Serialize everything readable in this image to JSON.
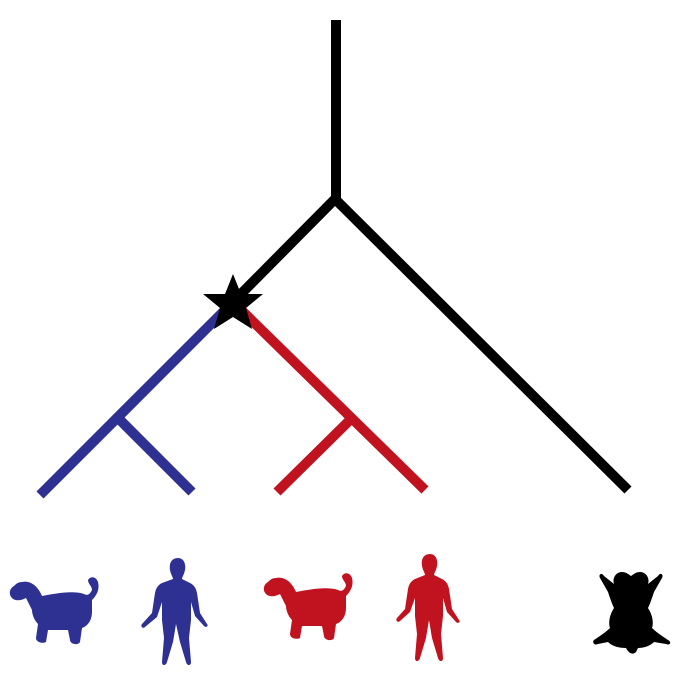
{
  "diagram": {
    "type": "phylogenetic-tree",
    "colors": {
      "trunk": "#000000",
      "clade_blue": "#2e3192",
      "clade_red": "#c1121f",
      "marker": "#000000",
      "background": "#ffffff"
    },
    "marker": {
      "icon": "star-icon",
      "meaning": "duplication-node"
    },
    "clades": [
      {
        "color_key": "clade_blue",
        "leaves": [
          {
            "icon": "dog-silhouette-icon",
            "color_key": "clade_blue"
          },
          {
            "icon": "human-silhouette-icon",
            "color_key": "clade_blue"
          }
        ]
      },
      {
        "color_key": "clade_red",
        "leaves": [
          {
            "icon": "dog-silhouette-icon",
            "color_key": "clade_red"
          },
          {
            "icon": "human-silhouette-icon",
            "color_key": "clade_red"
          }
        ]
      }
    ],
    "outgroup": {
      "icon": "frog-silhouette-icon",
      "color_key": "trunk"
    }
  }
}
